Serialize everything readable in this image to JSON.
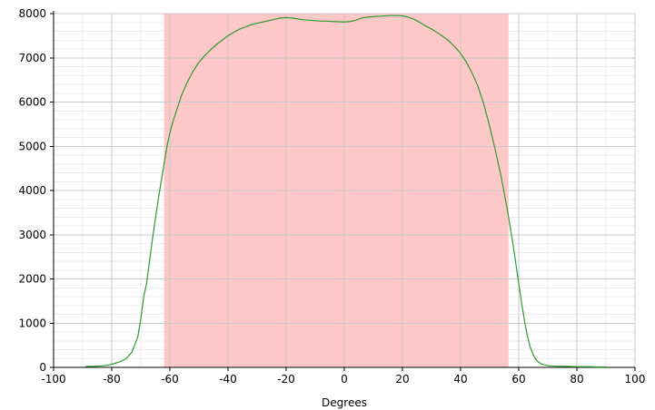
{
  "chart_data": {
    "type": "line",
    "title": "",
    "xlabel": "Degrees",
    "ylabel": "",
    "xlim": [
      -100,
      100
    ],
    "ylim": [
      0,
      8000
    ],
    "x_ticks": [
      -100,
      -80,
      -60,
      -40,
      -20,
      0,
      20,
      40,
      60,
      80,
      100
    ],
    "y_ticks": [
      0,
      1000,
      2000,
      3000,
      4000,
      5000,
      6000,
      7000,
      8000
    ],
    "x_tick_labels": [
      "-100",
      "-80",
      "-60",
      "-40",
      "-20",
      "0",
      "20",
      "40",
      "60",
      "80",
      "100"
    ],
    "y_tick_labels": [
      "0",
      "1000",
      "2000",
      "3000",
      "4000",
      "5000",
      "6000",
      "7000",
      "8000"
    ],
    "grid": true,
    "minor_grid": true,
    "highlight_region": {
      "x_start": -62,
      "x_end": 56.5,
      "color": "#ffc8c8"
    },
    "series": [
      {
        "color": "#2e9a2e",
        "x": [
          -89,
          -86,
          -83,
          -81,
          -79,
          -77,
          -75,
          -73,
          -71,
          -70,
          -69,
          -68,
          -67,
          -66,
          -65,
          -64,
          -63,
          -62,
          -61,
          -60,
          -59,
          -58,
          -57,
          -56,
          -55,
          -54,
          -52,
          -50,
          -48,
          -46,
          -44,
          -42,
          -40,
          -38,
          -36,
          -34,
          -32,
          -30,
          -28,
          -26,
          -24,
          -22,
          -20,
          -18,
          -16,
          -14,
          -12,
          -10,
          -8,
          -6,
          -4,
          -2,
          0,
          2,
          4,
          6,
          8,
          10,
          12,
          14,
          16,
          18,
          20,
          22,
          24,
          26,
          28,
          30,
          32,
          34,
          36,
          38,
          40,
          42,
          44,
          46,
          48,
          50,
          52,
          53,
          54,
          55,
          56,
          57,
          58,
          59,
          60,
          61,
          62,
          63,
          64,
          65,
          66,
          67,
          68,
          70,
          72,
          75,
          78,
          81,
          84,
          87,
          90
        ],
        "y": [
          20,
          25,
          35,
          55,
          90,
          130,
          200,
          350,
          700,
          1100,
          1600,
          1900,
          2400,
          2900,
          3350,
          3800,
          4200,
          4600,
          5000,
          5300,
          5550,
          5750,
          5950,
          6150,
          6300,
          6450,
          6700,
          6900,
          7050,
          7180,
          7300,
          7400,
          7500,
          7580,
          7650,
          7700,
          7750,
          7780,
          7810,
          7840,
          7870,
          7900,
          7910,
          7900,
          7880,
          7860,
          7850,
          7840,
          7830,
          7830,
          7820,
          7815,
          7810,
          7820,
          7850,
          7900,
          7920,
          7930,
          7940,
          7950,
          7955,
          7955,
          7950,
          7920,
          7870,
          7800,
          7720,
          7650,
          7570,
          7480,
          7380,
          7250,
          7100,
          6900,
          6650,
          6350,
          5950,
          5450,
          4900,
          4600,
          4300,
          3950,
          3600,
          3200,
          2800,
          2350,
          1900,
          1450,
          1050,
          700,
          450,
          280,
          170,
          110,
          70,
          40,
          30,
          25,
          20,
          15,
          15,
          10,
          10
        ]
      }
    ]
  }
}
